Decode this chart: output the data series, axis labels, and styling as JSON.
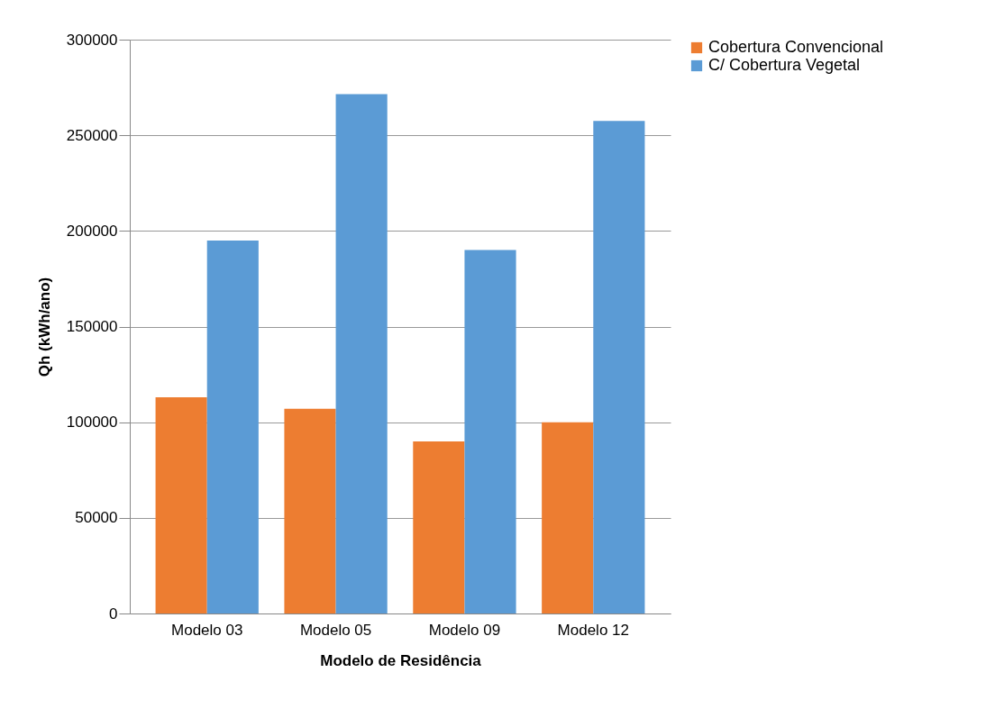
{
  "chart_data": {
    "type": "bar",
    "xlabel": "Modelo de Residência",
    "ylabel": "Qh (kWh/ano)",
    "categories": [
      "Modelo 03",
      "Modelo 05",
      "Modelo 09",
      "Modelo 12"
    ],
    "series": [
      {
        "name": "Cobertura Convencional",
        "color": "#ed7d31",
        "values": [
          113000,
          107000,
          90000,
          100000
        ]
      },
      {
        "name": "C/ Cobertura Vegetal",
        "color": "#5b9bd5",
        "values": [
          195000,
          271500,
          190000,
          257500
        ]
      }
    ],
    "ylim": [
      0,
      300000
    ],
    "yticks": [
      0,
      50000,
      100000,
      150000,
      200000,
      250000,
      300000
    ],
    "grid": "y",
    "legend": "right"
  }
}
